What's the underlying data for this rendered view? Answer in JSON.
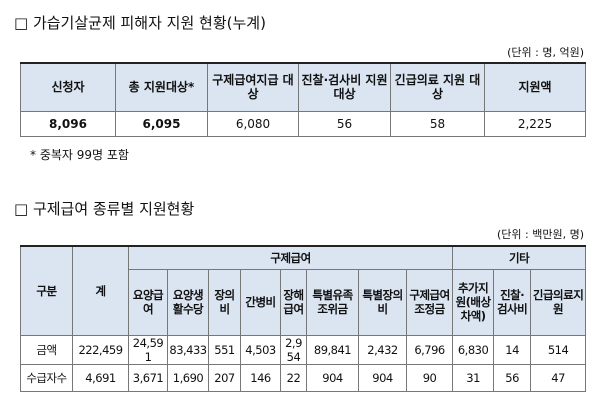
{
  "title1": "□ 가습기살균제 피해자 지원 현황(누계)",
  "unit1": "(단위 : 명, 억원)",
  "table1": {
    "header": [
      "신청자",
      "총 지원대상*",
      "구제급여지급 대상",
      "진찰·검사비 지원 대상",
      "긴급의료 지원 대상",
      "지원액"
    ],
    "rows": [
      [
        "8,096",
        "6,095",
        "6,080",
        "56",
        "58",
        "2,225"
      ]
    ]
  },
  "note": "* 중복자 99명 포함",
  "title2": "□ 구제급여 종류별 지원현황",
  "unit2": "(단위 : 백만원, 명)",
  "table2": {
    "group_header": [
      "구분",
      "계",
      "구제급여",
      "기타"
    ],
    "sub_header": [
      "요양급여",
      "요양생활수당",
      "장의비",
      "간병비",
      "장해급여",
      "특별유족조위금",
      "특별장의비",
      "구제급여조정금",
      "추가지원(배상차액)",
      "진찰·검사비",
      "긴급의료지원"
    ],
    "rows": [
      [
        "금액",
        "222,459",
        "24,591",
        "83,433",
        "551",
        "4,503",
        "2,954",
        "89,841",
        "2,432",
        "6,796",
        "6,830",
        "14",
        "514"
      ],
      [
        "수급자수",
        "4,691",
        "3,671",
        "1,690",
        "207",
        "146",
        "22",
        "904",
        "904",
        "90",
        "31",
        "56",
        "47"
      ]
    ]
  }
}
